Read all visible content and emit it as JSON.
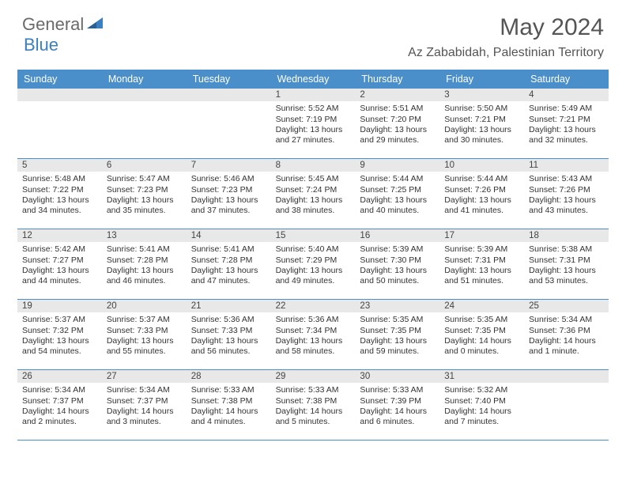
{
  "brand": {
    "part1": "General",
    "part2": "Blue"
  },
  "title": "May 2024",
  "location": "Az Zababidah, Palestinian Territory",
  "colors": {
    "header_bg": "#4a8fc9",
    "header_fg": "#ffffff",
    "daynum_bg": "#e8e8e8",
    "border": "#4a8fc9",
    "brand_gray": "#6a6a6a",
    "brand_blue": "#3b7fbf"
  },
  "dayNames": [
    "Sunday",
    "Monday",
    "Tuesday",
    "Wednesday",
    "Thursday",
    "Friday",
    "Saturday"
  ],
  "weeks": [
    [
      null,
      null,
      null,
      {
        "n": "1",
        "sr": "5:52 AM",
        "ss": "7:19 PM",
        "dl": "13 hours and 27 minutes."
      },
      {
        "n": "2",
        "sr": "5:51 AM",
        "ss": "7:20 PM",
        "dl": "13 hours and 29 minutes."
      },
      {
        "n": "3",
        "sr": "5:50 AM",
        "ss": "7:21 PM",
        "dl": "13 hours and 30 minutes."
      },
      {
        "n": "4",
        "sr": "5:49 AM",
        "ss": "7:21 PM",
        "dl": "13 hours and 32 minutes."
      }
    ],
    [
      {
        "n": "5",
        "sr": "5:48 AM",
        "ss": "7:22 PM",
        "dl": "13 hours and 34 minutes."
      },
      {
        "n": "6",
        "sr": "5:47 AM",
        "ss": "7:23 PM",
        "dl": "13 hours and 35 minutes."
      },
      {
        "n": "7",
        "sr": "5:46 AM",
        "ss": "7:23 PM",
        "dl": "13 hours and 37 minutes."
      },
      {
        "n": "8",
        "sr": "5:45 AM",
        "ss": "7:24 PM",
        "dl": "13 hours and 38 minutes."
      },
      {
        "n": "9",
        "sr": "5:44 AM",
        "ss": "7:25 PM",
        "dl": "13 hours and 40 minutes."
      },
      {
        "n": "10",
        "sr": "5:44 AM",
        "ss": "7:26 PM",
        "dl": "13 hours and 41 minutes."
      },
      {
        "n": "11",
        "sr": "5:43 AM",
        "ss": "7:26 PM",
        "dl": "13 hours and 43 minutes."
      }
    ],
    [
      {
        "n": "12",
        "sr": "5:42 AM",
        "ss": "7:27 PM",
        "dl": "13 hours and 44 minutes."
      },
      {
        "n": "13",
        "sr": "5:41 AM",
        "ss": "7:28 PM",
        "dl": "13 hours and 46 minutes."
      },
      {
        "n": "14",
        "sr": "5:41 AM",
        "ss": "7:28 PM",
        "dl": "13 hours and 47 minutes."
      },
      {
        "n": "15",
        "sr": "5:40 AM",
        "ss": "7:29 PM",
        "dl": "13 hours and 49 minutes."
      },
      {
        "n": "16",
        "sr": "5:39 AM",
        "ss": "7:30 PM",
        "dl": "13 hours and 50 minutes."
      },
      {
        "n": "17",
        "sr": "5:39 AM",
        "ss": "7:31 PM",
        "dl": "13 hours and 51 minutes."
      },
      {
        "n": "18",
        "sr": "5:38 AM",
        "ss": "7:31 PM",
        "dl": "13 hours and 53 minutes."
      }
    ],
    [
      {
        "n": "19",
        "sr": "5:37 AM",
        "ss": "7:32 PM",
        "dl": "13 hours and 54 minutes."
      },
      {
        "n": "20",
        "sr": "5:37 AM",
        "ss": "7:33 PM",
        "dl": "13 hours and 55 minutes."
      },
      {
        "n": "21",
        "sr": "5:36 AM",
        "ss": "7:33 PM",
        "dl": "13 hours and 56 minutes."
      },
      {
        "n": "22",
        "sr": "5:36 AM",
        "ss": "7:34 PM",
        "dl": "13 hours and 58 minutes."
      },
      {
        "n": "23",
        "sr": "5:35 AM",
        "ss": "7:35 PM",
        "dl": "13 hours and 59 minutes."
      },
      {
        "n": "24",
        "sr": "5:35 AM",
        "ss": "7:35 PM",
        "dl": "14 hours and 0 minutes."
      },
      {
        "n": "25",
        "sr": "5:34 AM",
        "ss": "7:36 PM",
        "dl": "14 hours and 1 minute."
      }
    ],
    [
      {
        "n": "26",
        "sr": "5:34 AM",
        "ss": "7:37 PM",
        "dl": "14 hours and 2 minutes."
      },
      {
        "n": "27",
        "sr": "5:34 AM",
        "ss": "7:37 PM",
        "dl": "14 hours and 3 minutes."
      },
      {
        "n": "28",
        "sr": "5:33 AM",
        "ss": "7:38 PM",
        "dl": "14 hours and 4 minutes."
      },
      {
        "n": "29",
        "sr": "5:33 AM",
        "ss": "7:38 PM",
        "dl": "14 hours and 5 minutes."
      },
      {
        "n": "30",
        "sr": "5:33 AM",
        "ss": "7:39 PM",
        "dl": "14 hours and 6 minutes."
      },
      {
        "n": "31",
        "sr": "5:32 AM",
        "ss": "7:40 PM",
        "dl": "14 hours and 7 minutes."
      },
      null
    ]
  ],
  "labels": {
    "sunrise": "Sunrise:",
    "sunset": "Sunset:",
    "daylight": "Daylight:"
  }
}
